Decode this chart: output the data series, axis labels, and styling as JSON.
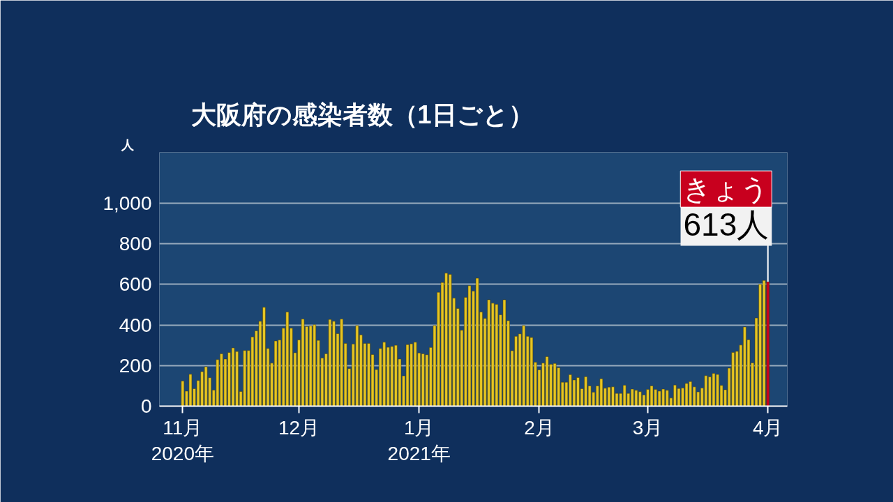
{
  "chart_data": {
    "type": "bar",
    "title": "大阪府の感染者数（1日ごと）",
    "ylabel": "人",
    "x": [
      "2020-11-01",
      "2020-11-02",
      "2020-11-03",
      "2020-11-04",
      "2020-11-05",
      "2020-11-06",
      "2020-11-07",
      "2020-11-08",
      "2020-11-09",
      "2020-11-10",
      "2020-11-11",
      "2020-11-12",
      "2020-11-13",
      "2020-11-14",
      "2020-11-15",
      "2020-11-16",
      "2020-11-17",
      "2020-11-18",
      "2020-11-19",
      "2020-11-20",
      "2020-11-21",
      "2020-11-22",
      "2020-11-23",
      "2020-11-24",
      "2020-11-25",
      "2020-11-26",
      "2020-11-27",
      "2020-11-28",
      "2020-11-29",
      "2020-11-30",
      "2020-12-01",
      "2020-12-02",
      "2020-12-03",
      "2020-12-04",
      "2020-12-05",
      "2020-12-06",
      "2020-12-07",
      "2020-12-08",
      "2020-12-09",
      "2020-12-10",
      "2020-12-11",
      "2020-12-12",
      "2020-12-13",
      "2020-12-14",
      "2020-12-15",
      "2020-12-16",
      "2020-12-17",
      "2020-12-18",
      "2020-12-19",
      "2020-12-20",
      "2020-12-21",
      "2020-12-22",
      "2020-12-23",
      "2020-12-24",
      "2020-12-25",
      "2020-12-26",
      "2020-12-27",
      "2020-12-28",
      "2020-12-29",
      "2020-12-30",
      "2020-12-31",
      "2021-01-01",
      "2021-01-02",
      "2021-01-03",
      "2021-01-04",
      "2021-01-05",
      "2021-01-06",
      "2021-01-07",
      "2021-01-08",
      "2021-01-09",
      "2021-01-10",
      "2021-01-11",
      "2021-01-12",
      "2021-01-13",
      "2021-01-14",
      "2021-01-15",
      "2021-01-16",
      "2021-01-17",
      "2021-01-18",
      "2021-01-19",
      "2021-01-20",
      "2021-01-21",
      "2021-01-22",
      "2021-01-23",
      "2021-01-24",
      "2021-01-25",
      "2021-01-26",
      "2021-01-27",
      "2021-01-28",
      "2021-01-29",
      "2021-01-30",
      "2021-01-31",
      "2021-02-01",
      "2021-02-02",
      "2021-02-03",
      "2021-02-04",
      "2021-02-05",
      "2021-02-06",
      "2021-02-07",
      "2021-02-08",
      "2021-02-09",
      "2021-02-10",
      "2021-02-11",
      "2021-02-12",
      "2021-02-13",
      "2021-02-14",
      "2021-02-15",
      "2021-02-16",
      "2021-02-17",
      "2021-02-18",
      "2021-02-19",
      "2021-02-20",
      "2021-02-21",
      "2021-02-22",
      "2021-02-23",
      "2021-02-24",
      "2021-02-25",
      "2021-02-26",
      "2021-02-27",
      "2021-02-28",
      "2021-03-01",
      "2021-03-02",
      "2021-03-03",
      "2021-03-04",
      "2021-03-05",
      "2021-03-06",
      "2021-03-07",
      "2021-03-08",
      "2021-03-09",
      "2021-03-10",
      "2021-03-11",
      "2021-03-12",
      "2021-03-13",
      "2021-03-14",
      "2021-03-15",
      "2021-03-16",
      "2021-03-17",
      "2021-03-18",
      "2021-03-19",
      "2021-03-20",
      "2021-03-21",
      "2021-03-22",
      "2021-03-23",
      "2021-03-24",
      "2021-03-25",
      "2021-03-26",
      "2021-03-27",
      "2021-03-28",
      "2021-03-29",
      "2021-03-30",
      "2021-03-31",
      "2021-04-01"
    ],
    "values": [
      124,
      74,
      157,
      86,
      126,
      170,
      194,
      140,
      79,
      229,
      258,
      232,
      264,
      287,
      269,
      72,
      274,
      274,
      341,
      371,
      418,
      487,
      284,
      212,
      321,
      326,
      384,
      464,
      384,
      263,
      326,
      429,
      392,
      395,
      401,
      324,
      237,
      258,
      427,
      418,
      357,
      429,
      309,
      185,
      306,
      397,
      351,
      309,
      309,
      254,
      180,
      284,
      315,
      290,
      294,
      300,
      232,
      149,
      303,
      307,
      315,
      262,
      258,
      253,
      289,
      397,
      561,
      609,
      655,
      649,
      532,
      481,
      374,
      536,
      593,
      567,
      630,
      464,
      432,
      524,
      507,
      501,
      450,
      524,
      421,
      273,
      344,
      356,
      397,
      344,
      338,
      216,
      179,
      212,
      244,
      206,
      210,
      189,
      118,
      118,
      155,
      129,
      141,
      86,
      145,
      100,
      69,
      100,
      135,
      88,
      94,
      95,
      63,
      63,
      103,
      63,
      84,
      78,
      71,
      55,
      82,
      100,
      82,
      74,
      84,
      78,
      40,
      104,
      87,
      89,
      112,
      121,
      95,
      70,
      89,
      150,
      144,
      161,
      156,
      102,
      81,
      187,
      264,
      270,
      301,
      390,
      327,
      213,
      434,
      600,
      619,
      613
    ],
    "colors": [
      "#e6c522",
      "#e6c522",
      "#e6c522",
      "#e6c522",
      "#e6c522",
      "#e6c522",
      "#e6c522",
      "#e6c522",
      "#e6c522",
      "#e6c522",
      "#e6c522",
      "#e6c522",
      "#e6c522",
      "#e6c522",
      "#e6c522",
      "#e6c522",
      "#e6c522",
      "#e6c522",
      "#e6c522",
      "#e6c522",
      "#e6c522",
      "#e6c522",
      "#e6c522",
      "#e6c522",
      "#e6c522",
      "#e6c522",
      "#e6c522",
      "#e6c522",
      "#e6c522",
      "#e6c522",
      "#e6c522",
      "#e6c522",
      "#e6c522",
      "#e6c522",
      "#e6c522",
      "#e6c522",
      "#e6c522",
      "#e6c522",
      "#e6c522",
      "#e6c522",
      "#e6c522",
      "#e6c522",
      "#e6c522",
      "#e6c522",
      "#e6c522",
      "#e6c522",
      "#e6c522",
      "#e6c522",
      "#e6c522",
      "#e6c522",
      "#e6c522",
      "#e6c522",
      "#e6c522",
      "#e6c522",
      "#e6c522",
      "#e6c522",
      "#e6c522",
      "#e6c522",
      "#e6c522",
      "#e6c522",
      "#e6c522",
      "#e6c522",
      "#e6c522",
      "#e6c522",
      "#e6c522",
      "#e6c522",
      "#e6c522",
      "#e6c522",
      "#e6c522",
      "#e6c522",
      "#e6c522",
      "#e6c522",
      "#e6c522",
      "#e6c522",
      "#e6c522",
      "#e6c522",
      "#e6c522",
      "#e6c522",
      "#e6c522",
      "#e6c522",
      "#e6c522",
      "#e6c522",
      "#e6c522",
      "#e6c522",
      "#e6c522",
      "#e6c522",
      "#e6c522",
      "#e6c522",
      "#e6c522",
      "#e6c522",
      "#e6c522",
      "#e6c522",
      "#e6c522",
      "#e6c522",
      "#e6c522",
      "#e6c522",
      "#e6c522",
      "#e6c522",
      "#e6c522",
      "#e6c522",
      "#e6c522",
      "#e6c522",
      "#e6c522",
      "#e6c522",
      "#e6c522",
      "#e6c522",
      "#e6c522",
      "#e6c522",
      "#e6c522",
      "#e6c522",
      "#e6c522",
      "#e6c522",
      "#e6c522",
      "#e6c522",
      "#e6c522",
      "#e6c522",
      "#e6c522",
      "#e6c522",
      "#e6c522",
      "#e6c522",
      "#e6c522",
      "#e6c522",
      "#e6c522",
      "#e6c522",
      "#e6c522",
      "#e6c522",
      "#e6c522",
      "#e6c522",
      "#e6c522",
      "#e6c522",
      "#e6c522",
      "#e6c522",
      "#e6c522",
      "#e6c522",
      "#e6c522",
      "#e6c522",
      "#e6c522",
      "#e6c522",
      "#e6c522",
      "#e6c522",
      "#e6c522",
      "#e6c522",
      "#e6c522",
      "#e6c522",
      "#e6c522",
      "#e6c522",
      "#e6c522",
      "#e6c522",
      "#e6c522",
      "#e6c522",
      "#e6c522",
      "#c8001e"
    ],
    "value_labels": [
      null,
      null,
      null,
      null,
      null,
      null,
      null,
      null,
      null,
      null,
      null,
      null,
      null,
      null,
      null,
      null,
      null,
      null,
      null,
      null,
      null,
      null,
      null,
      null,
      null,
      null,
      null,
      null,
      null,
      null,
      null,
      null,
      null,
      null,
      null,
      null,
      null,
      null,
      null,
      null,
      null,
      null,
      null,
      null,
      null,
      null,
      null,
      null,
      null,
      null,
      null,
      null,
      null,
      null,
      null,
      null,
      null,
      null,
      null,
      null,
      null,
      null,
      null,
      null,
      null,
      null,
      null,
      null,
      null,
      null,
      null,
      null,
      null,
      null,
      null,
      null,
      null,
      null,
      null,
      null,
      null,
      null,
      null,
      null,
      null,
      null,
      null,
      null,
      null,
      null,
      null,
      null,
      null,
      null,
      null,
      null,
      null,
      null,
      null,
      null,
      null,
      null,
      null,
      null,
      null,
      null,
      null,
      null,
      null,
      null,
      null,
      null,
      null,
      null,
      null,
      null,
      null,
      null,
      null,
      null,
      null,
      null,
      null,
      null,
      null,
      null,
      null,
      null,
      null,
      null,
      null,
      null,
      null,
      null,
      null,
      null,
      null,
      null,
      null,
      null,
      null,
      null,
      null,
      null,
      null,
      null,
      null,
      null,
      null,
      null,
      null,
      "613人"
    ],
    "annotations": [
      {
        "text": "きょう",
        "x": "2021-04-01",
        "y": 613
      }
    ],
    "xlim": [
      "2020-10-26",
      "2021-04-06"
    ],
    "xticks": [
      {
        "value": "2020-11-01",
        "label": "11月\n2020年"
      },
      {
        "value": "2020-12-01",
        "label": "12月"
      },
      {
        "value": "2021-01-01",
        "label": "1月\n2021年"
      },
      {
        "value": "2021-02-01",
        "label": "2月"
      },
      {
        "value": "2021-03-01",
        "label": "3月"
      },
      {
        "value": "2021-04-01",
        "label": "4月"
      }
    ],
    "ylim": [
      0,
      1250
    ],
    "yticks": [
      0,
      200,
      400,
      600,
      800,
      {
        "value": 1000,
        "label": "1,000"
      }
    ],
    "grid": "y"
  }
}
